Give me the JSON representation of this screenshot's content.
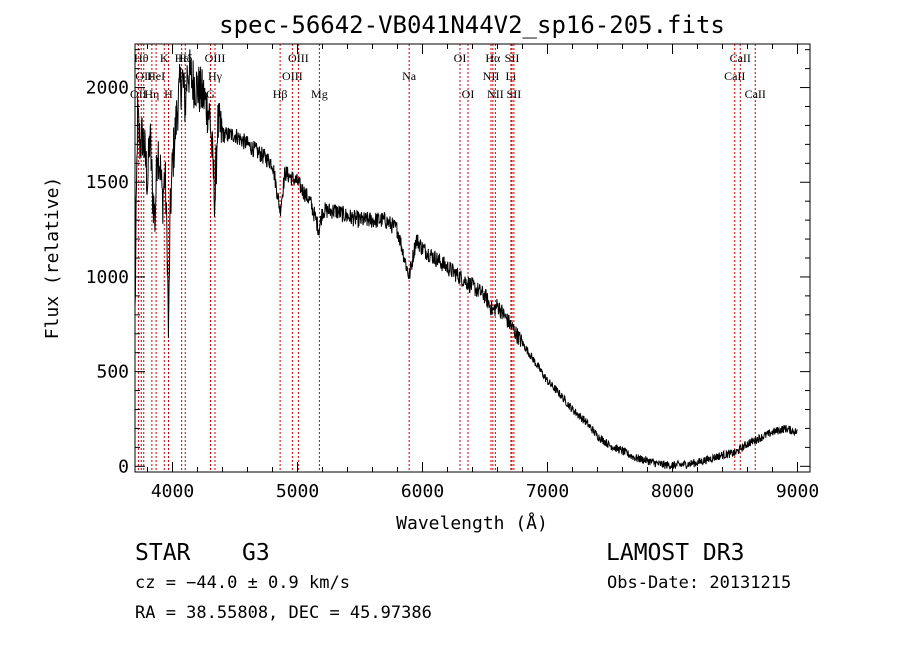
{
  "chart_data": {
    "type": "line",
    "title": "spec-56642-VB041N44V2_sp16-205.fits",
    "xlabel": "Wavelength (Å)",
    "ylabel": "Flux (relative)",
    "xlim": [
      3700,
      9100
    ],
    "ylim": [
      -30,
      2230
    ],
    "x_ticks": [
      4000,
      5000,
      6000,
      7000,
      8000,
      9000
    ],
    "x_tick_labels": [
      "4000",
      "5000",
      "6000",
      "7000",
      "8000",
      "9000"
    ],
    "y_ticks": [
      0,
      500,
      1000,
      1500,
      2000
    ],
    "y_tick_labels": [
      "0",
      "500",
      "1000",
      "1500",
      "2000"
    ],
    "grid": false,
    "series": [
      {
        "name": "flux",
        "color": "#000000",
        "x": [
          3700,
          3720,
          3740,
          3760,
          3780,
          3800,
          3820,
          3840,
          3860,
          3880,
          3900,
          3920,
          3940,
          3960,
          3968,
          3980,
          4000,
          4020,
          4040,
          4060,
          4080,
          4102,
          4120,
          4150,
          4200,
          4250,
          4300,
          4340,
          4360,
          4400,
          4500,
          4600,
          4700,
          4800,
          4861,
          4900,
          5000,
          5100,
          5172,
          5200,
          5300,
          5400,
          5500,
          5600,
          5700,
          5800,
          5893,
          5950,
          6000,
          6100,
          6200,
          6300,
          6400,
          6500,
          6563,
          6600,
          6700,
          6800,
          6900,
          7000,
          7100,
          7200,
          7300,
          7400,
          7500,
          7600,
          7700,
          7800,
          7900,
          8000,
          8100,
          8200,
          8300,
          8400,
          8500,
          8600,
          8700,
          8800,
          8900,
          9000
        ],
        "values": [
          800,
          1850,
          1700,
          1750,
          1650,
          1500,
          1750,
          1450,
          1300,
          1700,
          1600,
          1400,
          1550,
          1100,
          650,
          1300,
          1600,
          1750,
          1900,
          2000,
          2050,
          1900,
          2100,
          2050,
          2000,
          1950,
          1850,
          1400,
          1800,
          1750,
          1750,
          1700,
          1650,
          1600,
          1350,
          1550,
          1500,
          1400,
          1250,
          1350,
          1350,
          1320,
          1300,
          1300,
          1300,
          1250,
          1000,
          1200,
          1150,
          1100,
          1050,
          1000,
          950,
          900,
          820,
          850,
          750,
          650,
          550,
          450,
          380,
          300,
          240,
          160,
          110,
          80,
          45,
          30,
          10,
          5,
          10,
          20,
          40,
          60,
          70,
          120,
          150,
          180,
          200,
          180
        ]
      }
    ],
    "spectral_lines": [
      {
        "wavelength": 3727,
        "labels": [
          "OII"
        ],
        "rows": [
          3
        ]
      },
      {
        "wavelength": 3750,
        "labels": [
          "Hθ"
        ],
        "rows": [
          1
        ]
      },
      {
        "wavelength": 3770,
        "labels": [
          "OII"
        ],
        "rows": [
          2
        ]
      },
      {
        "wavelength": 3835,
        "labels": [
          "Hη"
        ],
        "rows": [
          3
        ]
      },
      {
        "wavelength": 3869,
        "labels": [
          "HeI"
        ],
        "rows": [
          2
        ]
      },
      {
        "wavelength": 3934,
        "labels": [
          "K"
        ],
        "rows": [
          1
        ]
      },
      {
        "wavelength": 3968,
        "labels": [
          "H"
        ],
        "rows": [
          3
        ]
      },
      {
        "wavelength": 4073,
        "labels": [
          "Hε"
        ],
        "rows": [
          1
        ]
      },
      {
        "wavelength": 4102,
        "labels": [
          "Hδ"
        ],
        "rows": [
          1
        ]
      },
      {
        "wavelength": 4304,
        "labels": [
          "G"
        ],
        "rows": [
          3
        ]
      },
      {
        "wavelength": 4340,
        "labels": [
          "OIII",
          "Hγ"
        ],
        "rows": [
          1,
          2
        ]
      },
      {
        "wavelength": 4861,
        "labels": [
          "Hβ"
        ],
        "rows": [
          3
        ]
      },
      {
        "wavelength": 4959,
        "labels": [
          "OIII"
        ],
        "rows": [
          2
        ]
      },
      {
        "wavelength": 5007,
        "labels": [
          "OIII"
        ],
        "rows": [
          1
        ]
      },
      {
        "wavelength": 5175,
        "labels": [
          "Mg"
        ],
        "rows": [
          3
        ]
      },
      {
        "wavelength": 5893,
        "labels": [
          "Na"
        ],
        "rows": [
          2
        ]
      },
      {
        "wavelength": 6300,
        "labels": [
          "OI"
        ],
        "rows": [
          1
        ]
      },
      {
        "wavelength": 6364,
        "labels": [
          "OI"
        ],
        "rows": [
          3
        ]
      },
      {
        "wavelength": 6548,
        "labels": [
          "NII"
        ],
        "rows": [
          2
        ]
      },
      {
        "wavelength": 6563,
        "labels": [
          "Hα"
        ],
        "rows": [
          1
        ]
      },
      {
        "wavelength": 6583,
        "labels": [
          "NII"
        ],
        "rows": [
          3
        ]
      },
      {
        "wavelength": 6707,
        "labels": [
          "Li"
        ],
        "rows": [
          2
        ]
      },
      {
        "wavelength": 6716,
        "labels": [
          "SII"
        ],
        "rows": [
          1
        ]
      },
      {
        "wavelength": 6731,
        "labels": [
          "SII"
        ],
        "rows": [
          3
        ]
      },
      {
        "wavelength": 8498,
        "labels": [
          "CaII"
        ],
        "rows": [
          2
        ]
      },
      {
        "wavelength": 8542,
        "labels": [
          "CaII"
        ],
        "rows": [
          1
        ]
      },
      {
        "wavelength": 8662,
        "labels": [
          "CaII"
        ],
        "rows": [
          3
        ]
      }
    ]
  },
  "info": {
    "object_class": "STAR",
    "subclass": "G3",
    "survey": "LAMOST DR3",
    "redshift": "cz = −44.0 ± 0.9 km/s",
    "obs_date": "Obs-Date: 20131215",
    "coordinates": "RA =  38.55808, DEC =  45.97386"
  },
  "colors": {
    "line_markers": "#cc0000",
    "spectrum": "#000000",
    "axes": "#000000"
  }
}
